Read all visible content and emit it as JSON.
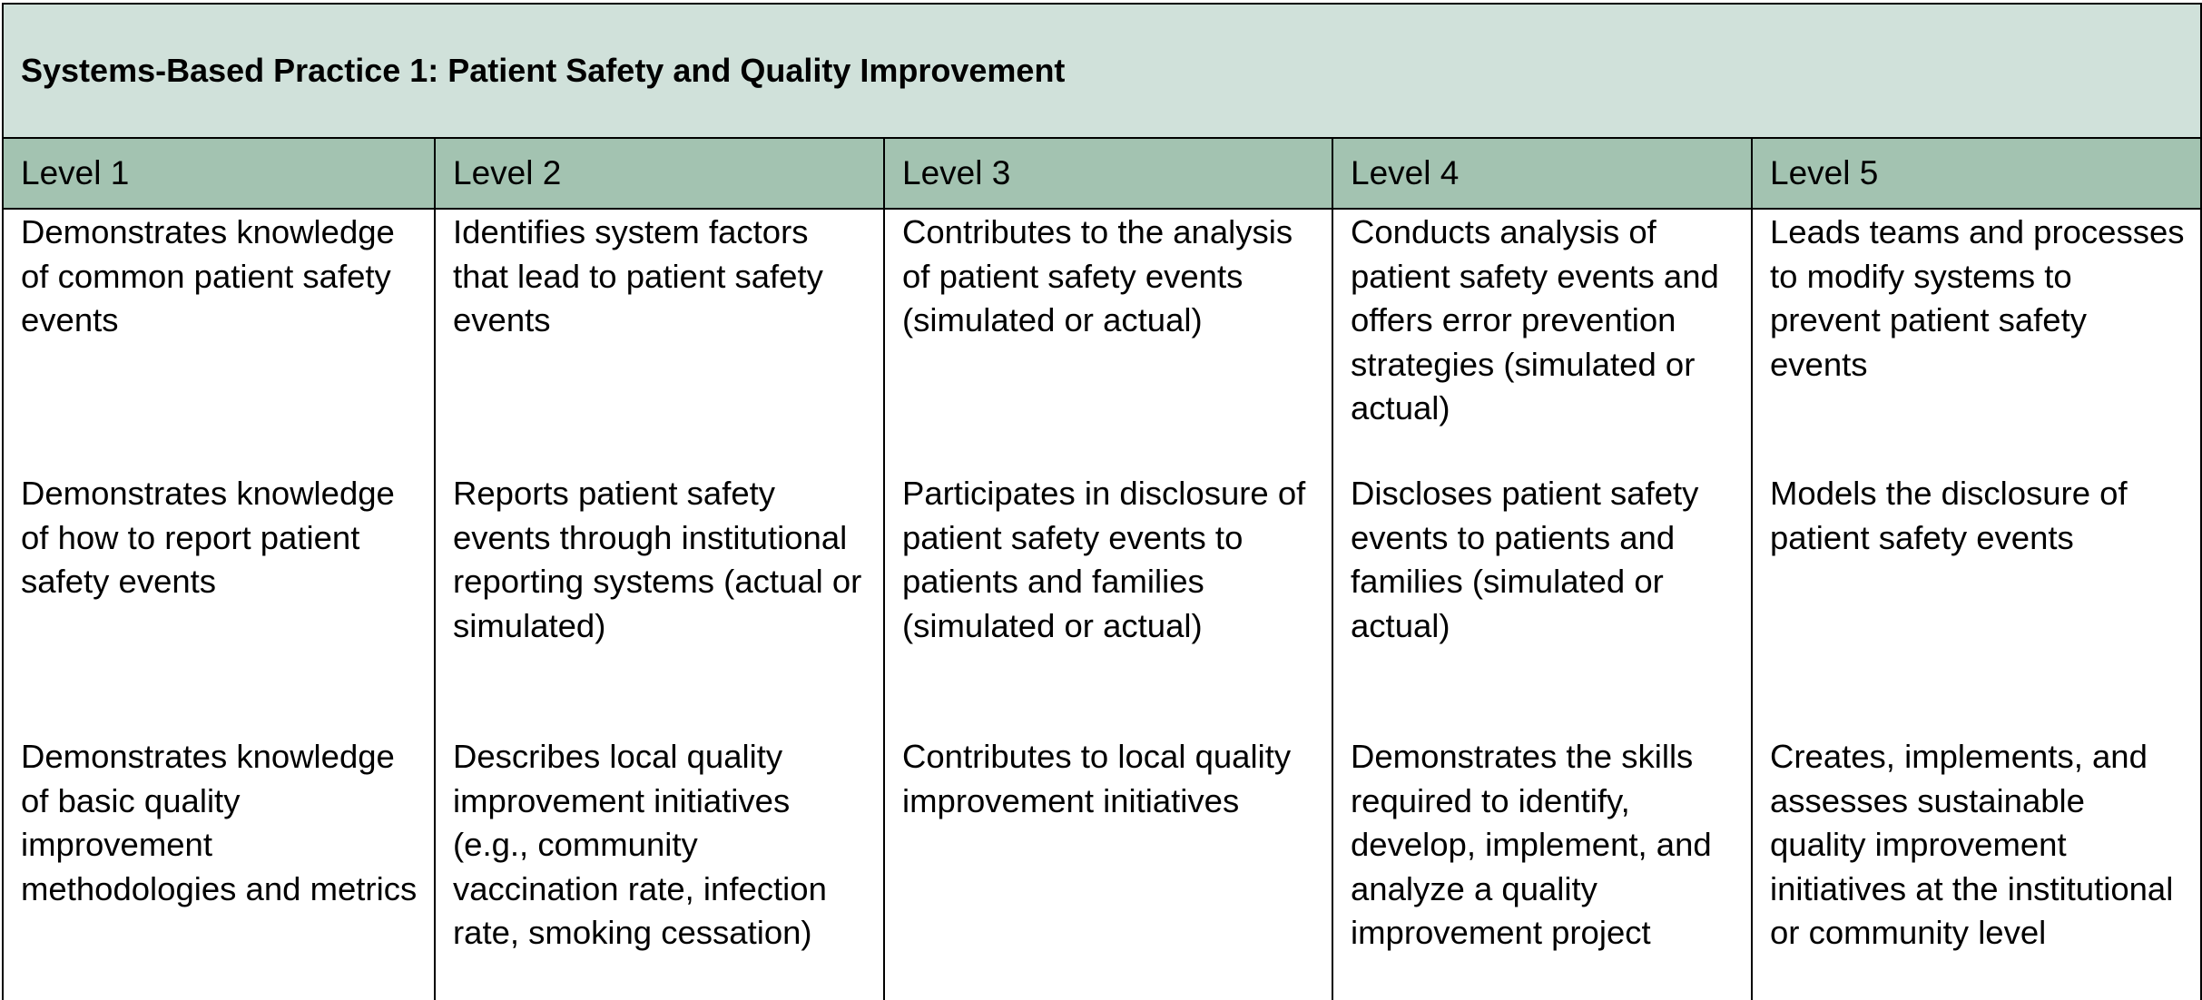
{
  "title": "Systems-Based Practice 1: Patient Safety and Quality Improvement",
  "colors": {
    "title_background": "#d0e1da",
    "header_background": "#a3c3b1",
    "border": "#000000"
  },
  "levels": [
    "Level 1",
    "Level 2",
    "Level 3",
    "Level 4",
    "Level 5"
  ],
  "rows": [
    [
      "Demonstrates knowledge of common patient safety events",
      "Identifies system factors that lead to patient safety events",
      "Contributes to the analysis of patient safety events (simulated or actual)",
      "Conducts analysis of patient safety events and offers error prevention strategies (simulated or actual)",
      "Leads teams and processes to modify systems to prevent patient safety events"
    ],
    [
      "Demonstrates knowledge of how to report patient safety events",
      "Reports patient safety events through institutional reporting systems (actual or simulated)",
      "Participates in disclosure of patient safety events to patients and families (simulated or actual)",
      "Discloses patient safety events to patients and families (simulated or actual)",
      "Models the disclosure of patient safety events"
    ],
    [
      "Demonstrates knowledge of basic quality improvement methodologies and metrics",
      "Describes local quality improvement initiatives (e.g., community vaccination rate, infection rate, smoking cessation)",
      "Contributes to local quality improvement initiatives",
      "Demonstrates the skills required to identify, develop, implement, and analyze a quality improvement project",
      "Creates, implements, and assesses sustainable quality improvement initiatives at the institutional or community level"
    ]
  ]
}
